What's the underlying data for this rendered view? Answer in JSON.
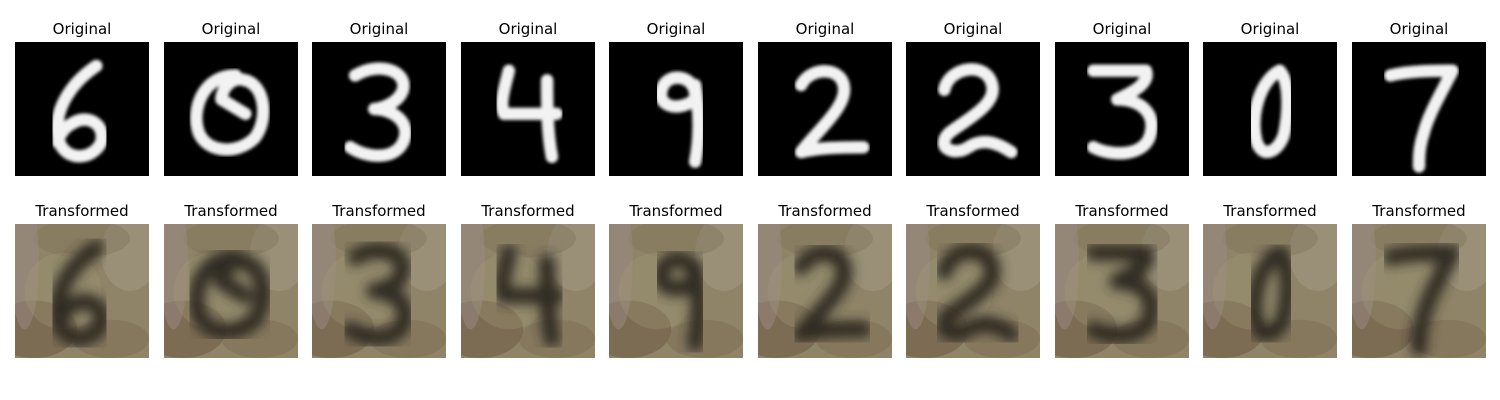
{
  "labels": {
    "original": "Original",
    "transformed": "Transformed"
  },
  "digits": [
    "6",
    "0",
    "3",
    "4",
    "9",
    "2",
    "2",
    "3",
    "0",
    "7"
  ],
  "colors": {
    "page_bg": "#ffffff",
    "digit_bg": "#000000",
    "digit_stroke": "#f2f2f2",
    "transformed_bg": "#8f8468",
    "transformed_stroke": "#2f2a22"
  }
}
